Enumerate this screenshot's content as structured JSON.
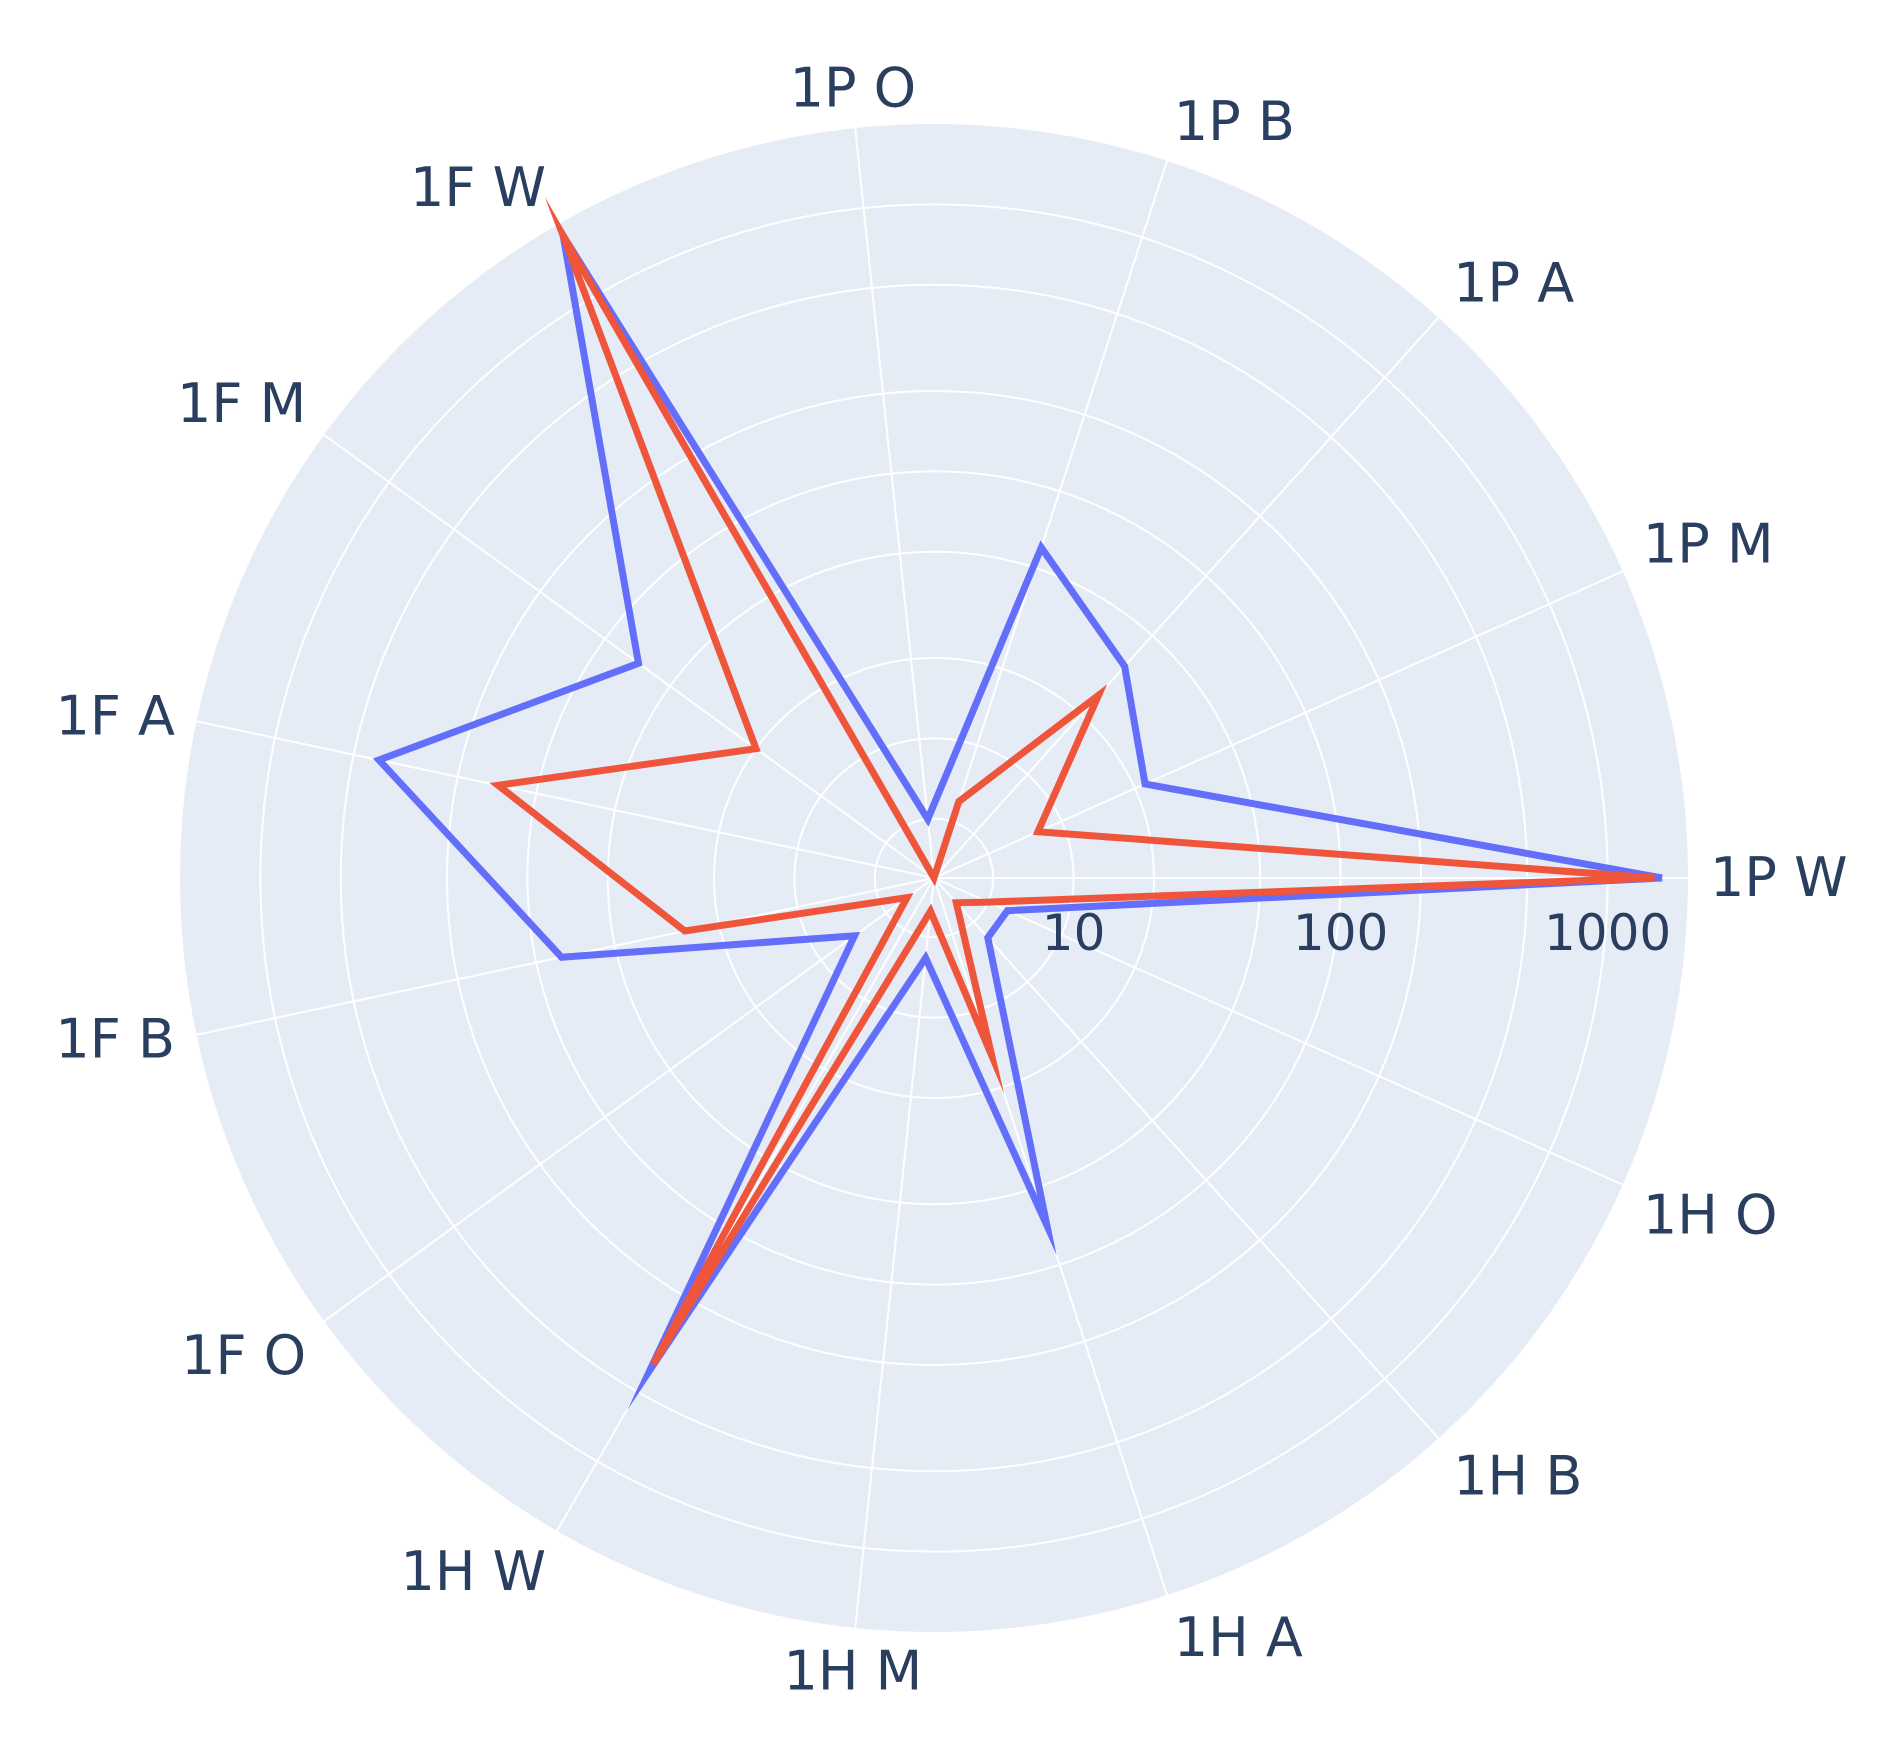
{
  "chart_data": {
    "type": "polar-line",
    "radial_axis": {
      "scale": "log",
      "tick_labels": [
        "10",
        "100",
        "1000"
      ],
      "tick_values": [
        10,
        100,
        1000
      ],
      "range": [
        3,
        2000
      ],
      "grid": true
    },
    "angular_axis": {
      "categories": [
        "1P W",
        "1P M",
        "1P A",
        "1P B",
        "1P O",
        "1F W",
        "1F M",
        "1F A",
        "1F B",
        "1F O",
        "1H W",
        "1H M",
        "1H A",
        "1H B",
        "1H O"
      ],
      "direction": "counterclockwise",
      "rotation_deg": 0,
      "grid": true
    },
    "series": [
      {
        "color": "#636efa",
        "values": [
          1600,
          22,
          35,
          60,
          5,
          1800,
          70,
          400,
          80,
          7,
          400,
          6,
          70,
          6,
          6
        ]
      },
      {
        "color": "#ef553b",
        "values": [
          1500,
          8,
          25,
          6,
          3,
          1800,
          20,
          140,
          27,
          4,
          380,
          4,
          15,
          4,
          5
        ]
      }
    ],
    "plot_background": "#e5ecf6",
    "grid_color": "#ffffff",
    "axis_text_color": "#2a3f5f"
  }
}
